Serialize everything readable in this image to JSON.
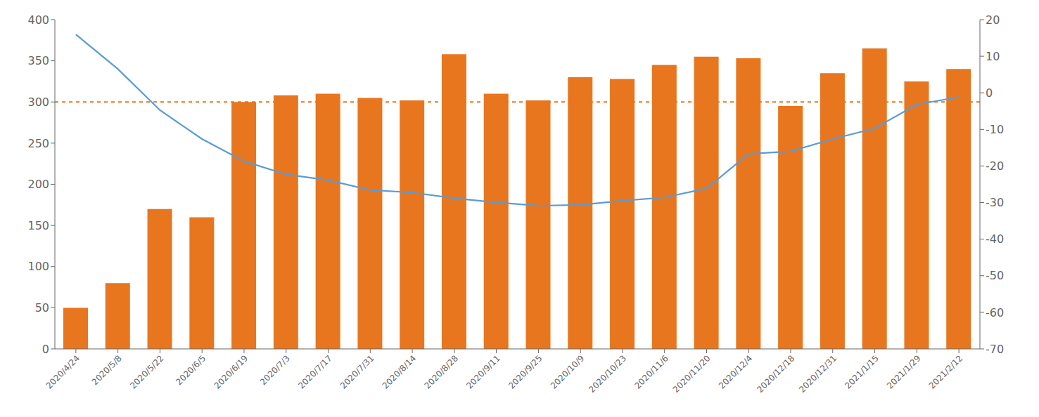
{
  "chart_data": {
    "type": "combo",
    "categories": [
      "2020/4/24",
      "2020/5/8",
      "2020/5/22",
      "2020/6/5",
      "2020/6/19",
      "2020/7/3",
      "2020/7/17",
      "2020/7/31",
      "2020/8/14",
      "2020/8/28",
      "2020/9/11",
      "2020/9/25",
      "2020/10/9",
      "2020/10/23",
      "2020/11/6",
      "2020/11/20",
      "2020/12/4",
      "2020/12/18",
      "2020/12/31",
      "2021/1/15",
      "2021/1/29",
      "2021/2/12"
    ],
    "series": [
      {
        "type": "bar",
        "color": "#E8761E",
        "values": [
          50,
          80,
          170,
          160,
          300,
          308,
          310,
          305,
          302,
          358,
          310,
          302,
          330,
          328,
          345,
          355,
          353,
          295,
          335,
          365,
          325,
          340
        ]
      },
      {
        "type": "line",
        "color": "#5B9BD5",
        "line_style": "solid",
        "values": [
          382,
          340,
          290,
          255,
          228,
          212,
          205,
          193,
          190,
          183,
          178,
          174,
          175,
          180,
          184,
          195,
          237,
          240,
          255,
          268,
          297,
          306
        ]
      }
    ],
    "reference_lines": [
      {
        "y": 300,
        "color": "#E8761E",
        "line_style": "dashed"
      }
    ],
    "ylim": [
      0,
      400
    ],
    "yticks": [
      0,
      50,
      100,
      150,
      200,
      250,
      300,
      350,
      400
    ],
    "y2lim": [
      -70,
      20
    ],
    "y2ticks": [
      -70,
      -60,
      -50,
      -40,
      -30,
      -20,
      -10,
      0,
      10,
      20
    ],
    "grid": false
  }
}
